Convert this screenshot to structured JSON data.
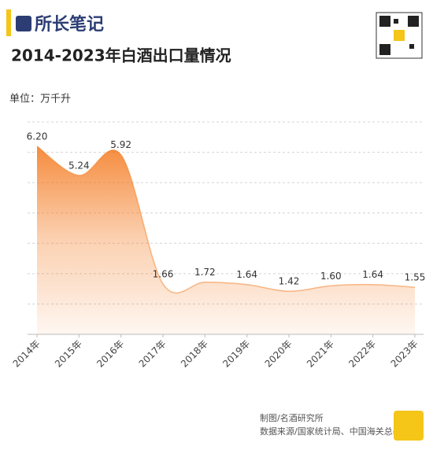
{
  "brand": "所长笔记",
  "footer": {
    "credit": "制图/名酒研究所",
    "source": "数据来源/国家统计局、中国海关总署"
  },
  "chart_data": {
    "type": "area",
    "title": "2014-2023年白酒出口量情况",
    "y_label": "单位：万千升",
    "categories": [
      "2014年",
      "2015年",
      "2016年",
      "2017年",
      "2018年",
      "2019年",
      "2020年",
      "2021年",
      "2022年",
      "2023年"
    ],
    "values": [
      6.2,
      5.24,
      5.92,
      1.66,
      1.72,
      1.64,
      1.42,
      1.6,
      1.64,
      1.55
    ],
    "value_labels": [
      "6.20",
      "5.24",
      "5.92",
      "1.66",
      "1.72",
      "1.64",
      "1.42",
      "1.60",
      "1.64",
      "1.55"
    ],
    "color": "#f47a20",
    "ylim": [
      0,
      7
    ],
    "yticks": [
      0,
      1,
      2,
      3,
      4,
      5,
      6,
      7
    ],
    "grid": true
  }
}
